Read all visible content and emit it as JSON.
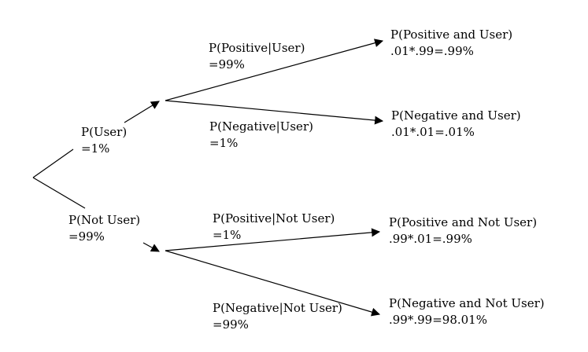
{
  "branches": {
    "user": {
      "label": "P(User)",
      "value": "=1%"
    },
    "not_user": {
      "label": "P(Not User)",
      "value": "=99%"
    }
  },
  "conditionals": {
    "pos_given_user": {
      "label": "P(Positive|User)",
      "value": "=99%"
    },
    "neg_given_user": {
      "label": "P(Negative|User)",
      "value": "=1%"
    },
    "pos_given_not_user": {
      "label": "P(Positive|Not User)",
      "value": "=1%"
    },
    "neg_given_not_user": {
      "label": "P(Negative|Not User)",
      "value": "=99%"
    }
  },
  "outcomes": {
    "pos_and_user": {
      "label": "P(Positive and User)",
      "calc": ".01*.99=.99%"
    },
    "neg_and_user": {
      "label": "P(Negative and User)",
      "calc": ".01*.01=.01%"
    },
    "pos_and_not_user": {
      "label": "P(Positive and Not User)",
      "calc": ".99*.01=.99%"
    },
    "neg_and_not_user": {
      "label": "P(Negative and Not User)",
      "calc": ".99*.99=98.01%"
    }
  }
}
